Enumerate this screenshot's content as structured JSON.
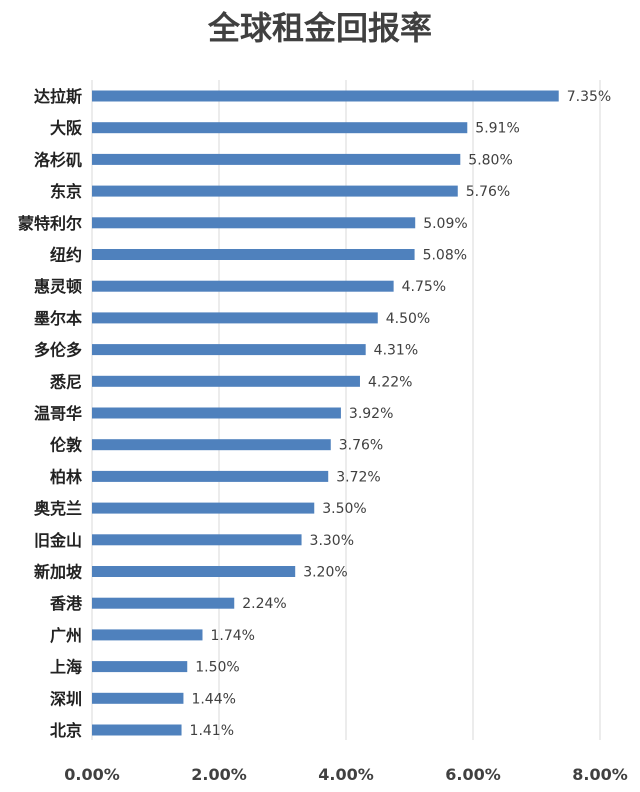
{
  "chart_data": {
    "type": "bar",
    "orientation": "horizontal",
    "title": "全球租金回报率",
    "xlabel": "",
    "ylabel": "",
    "categories": [
      "达拉斯",
      "大阪",
      "洛杉矶",
      "东京",
      "蒙特利尔",
      "纽约",
      "惠灵顿",
      "墨尔本",
      "多伦多",
      "悉尼",
      "温哥华",
      "伦敦",
      "柏林",
      "奥克兰",
      "旧金山",
      "新加坡",
      "香港",
      "广州",
      "上海",
      "深圳",
      "北京"
    ],
    "values": [
      7.35,
      5.91,
      5.8,
      5.76,
      5.09,
      5.08,
      4.75,
      4.5,
      4.31,
      4.22,
      3.92,
      3.76,
      3.72,
      3.5,
      3.3,
      3.2,
      2.24,
      1.74,
      1.5,
      1.44,
      1.41
    ],
    "value_labels": [
      "7.35%",
      "5.91%",
      "5.80%",
      "5.76%",
      "5.09%",
      "5.08%",
      "4.75%",
      "4.50%",
      "4.31%",
      "4.22%",
      "3.92%",
      "3.76%",
      "3.72%",
      "3.50%",
      "3.30%",
      "3.20%",
      "2.24%",
      "1.74%",
      "1.50%",
      "1.44%",
      "1.41%"
    ],
    "xticks": [
      0,
      2,
      4,
      6,
      8
    ],
    "xtick_labels": [
      "0.00%",
      "2.00%",
      "4.00%",
      "6.00%",
      "8.00%"
    ],
    "xlim": [
      0,
      8
    ],
    "grid": "vertical",
    "legend": "none",
    "bar_color": "#4f81bd"
  }
}
